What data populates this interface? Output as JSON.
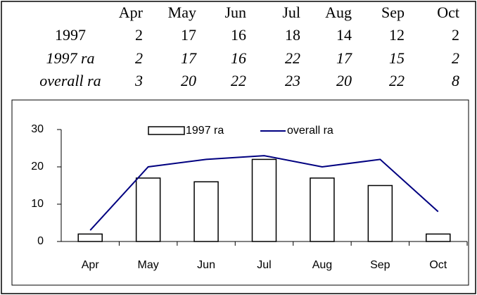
{
  "table": {
    "header": [
      "Apr",
      "May",
      "Jun",
      "Jul",
      "Aug",
      "Sep",
      "Oct"
    ],
    "rows": [
      [
        "1997",
        "2",
        "17",
        "16",
        "18",
        "14",
        "12",
        "2"
      ],
      [
        "1997 ra",
        "2",
        "17",
        "16",
        "22",
        "17",
        "15",
        "2"
      ],
      [
        "overall ra",
        "3",
        "20",
        "22",
        "23",
        "20",
        "22",
        "8"
      ]
    ]
  },
  "chart_data": {
    "type": "bar",
    "categories": [
      "Apr",
      "May",
      "Jun",
      "Jul",
      "Aug",
      "Sep",
      "Oct"
    ],
    "series": [
      {
        "name": "1997 ra",
        "type": "bar",
        "color": "#ffffff",
        "values": [
          2,
          17,
          16,
          22,
          17,
          15,
          2
        ]
      },
      {
        "name": "overall ra",
        "type": "line",
        "color": "#000080",
        "values": [
          3,
          20,
          22,
          23,
          20,
          22,
          8
        ]
      }
    ],
    "ylim": [
      0,
      30
    ],
    "yticks": [
      0,
      10,
      20,
      30
    ],
    "grid": false,
    "legend": "top"
  }
}
